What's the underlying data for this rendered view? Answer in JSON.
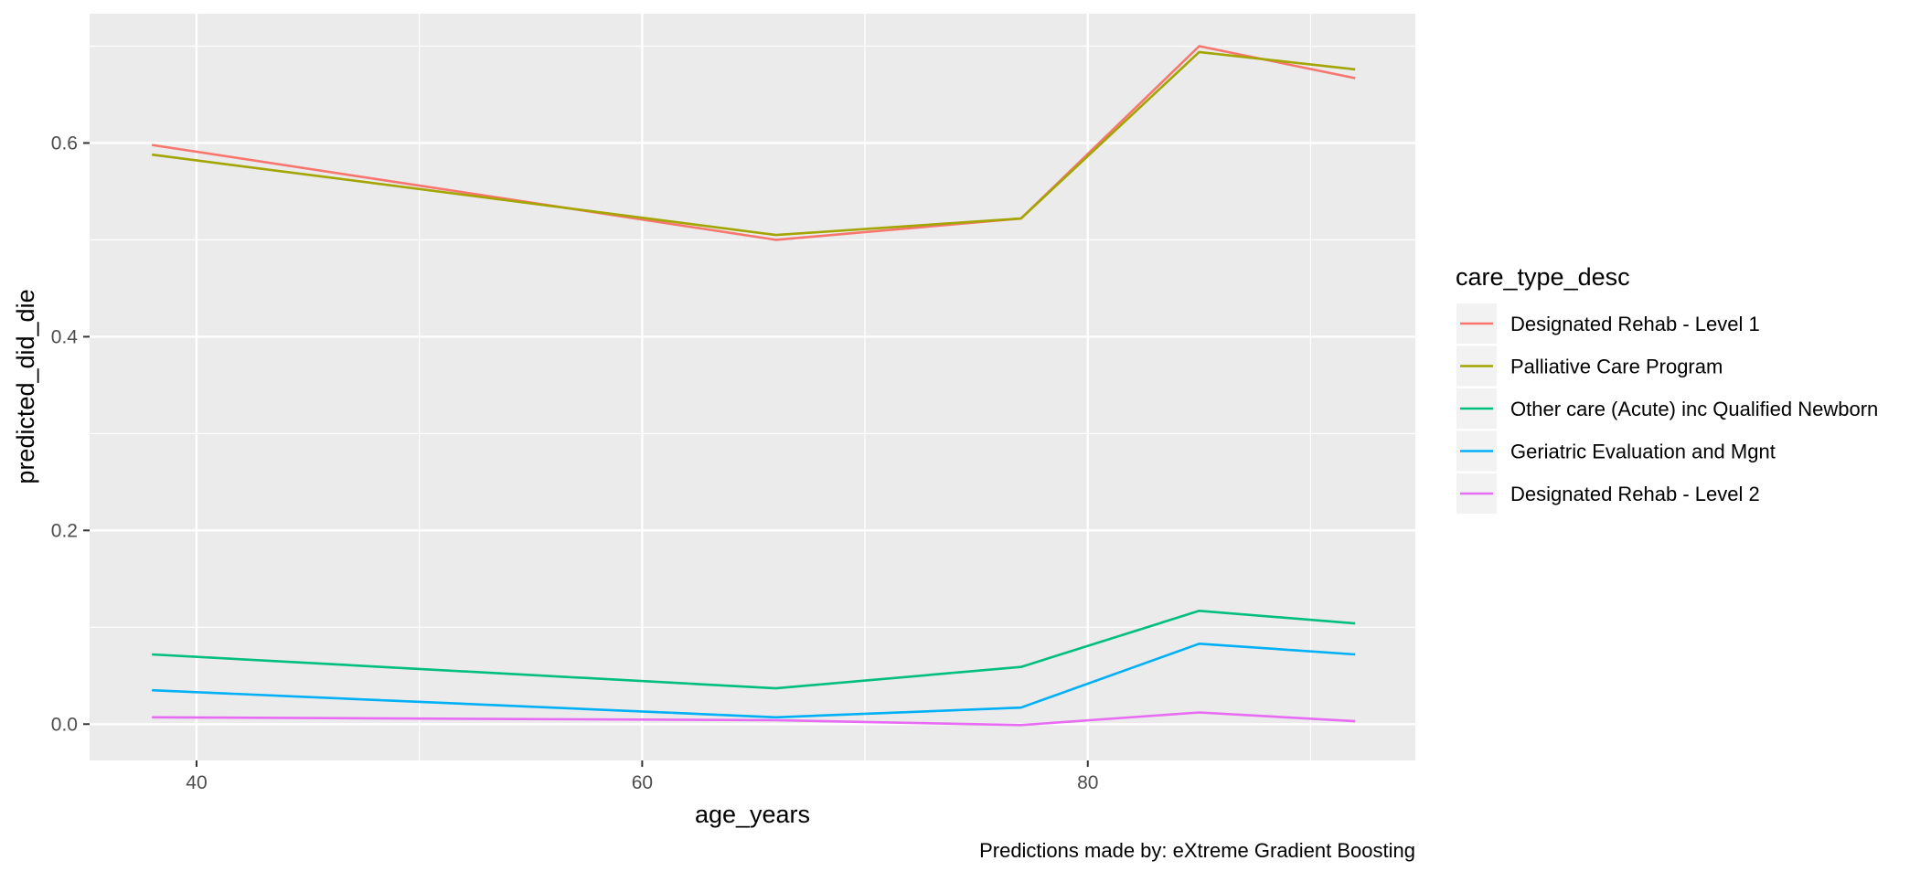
{
  "chart_data": {
    "type": "line",
    "xlabel": "age_years",
    "ylabel": "predicted_did_die",
    "caption": "Predictions made by: eXtreme Gradient Boosting",
    "xlim": [
      35.2,
      94.7
    ],
    "ylim": [
      -0.0375,
      0.7335
    ],
    "x_ticks": [
      40,
      60,
      80
    ],
    "x_tick_labels": [
      "40",
      "60",
      "80"
    ],
    "y_ticks": [
      0.0,
      0.2,
      0.4,
      0.6
    ],
    "y_tick_labels": [
      "0.0",
      "0.2",
      "0.4",
      "0.6"
    ],
    "grid": true,
    "x": [
      38,
      66,
      77,
      85,
      92
    ],
    "legend": {
      "title": "care_type_desc",
      "position": "right"
    },
    "series": [
      {
        "name": "Designated Rehab - Level 1",
        "color": "#F8766D",
        "values": [
          0.598,
          0.5,
          0.522,
          0.7,
          0.667
        ]
      },
      {
        "name": "Palliative Care Program",
        "color": "#A3A500",
        "values": [
          0.588,
          0.505,
          0.522,
          0.694,
          0.676
        ]
      },
      {
        "name": "Other care (Acute) inc Qualified Newborn",
        "color": "#00BF7D",
        "values": [
          0.072,
          0.037,
          0.059,
          0.117,
          0.104
        ]
      },
      {
        "name": "Geriatric Evaluation and Mgnt",
        "color": "#00B0F6",
        "values": [
          0.035,
          0.007,
          0.017,
          0.083,
          0.072
        ]
      },
      {
        "name": "Designated Rehab - Level 2",
        "color": "#E76BF3",
        "values": [
          0.007,
          0.004,
          -0.001,
          0.012,
          0.003
        ]
      }
    ]
  }
}
